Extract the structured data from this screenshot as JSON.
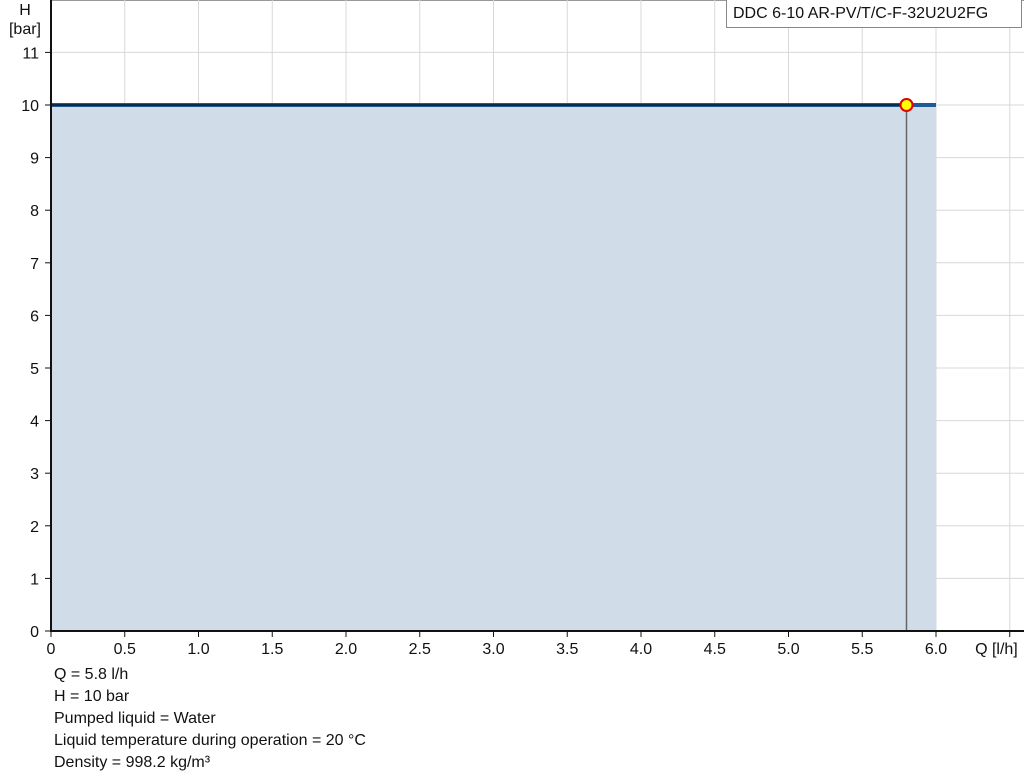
{
  "chart_data": {
    "type": "area",
    "title": "",
    "xlabel": "Q [l/h]",
    "ylabel_line1": "H",
    "ylabel_line2": "[bar]",
    "xlim": [
      0,
      6.5
    ],
    "ylim": [
      0,
      12
    ],
    "x_ticks": [
      "0",
      "0.5",
      "1.0",
      "1.5",
      "2.0",
      "2.5",
      "3.0",
      "3.5",
      "4.0",
      "4.5",
      "5.0",
      "5.5",
      "6.0"
    ],
    "x_tick_values": [
      0,
      0.5,
      1.0,
      1.5,
      2.0,
      2.5,
      3.0,
      3.5,
      4.0,
      4.5,
      5.0,
      5.5,
      6.0
    ],
    "y_ticks": [
      0,
      1,
      2,
      3,
      4,
      5,
      6,
      7,
      8,
      9,
      10,
      11
    ],
    "grid": true,
    "series": [
      {
        "name": "DDC 6-10 AR-PV/T/C-F-32U2U2FG",
        "x": [
          0,
          6.0
        ],
        "y": [
          10,
          10
        ],
        "color": "#1f5a94",
        "fill": "#d0dce8"
      }
    ],
    "duty_point": {
      "x": 5.8,
      "y": 10,
      "fill": "#ffff00",
      "stroke": "#e00000"
    },
    "legend_placement": "top-right"
  },
  "info": [
    "Q = 5.8 l/h",
    "H = 10 bar",
    "Pumped liquid = Water",
    "Liquid temperature during operation = 20 °C",
    "Density = 998.2 kg/m³"
  ]
}
